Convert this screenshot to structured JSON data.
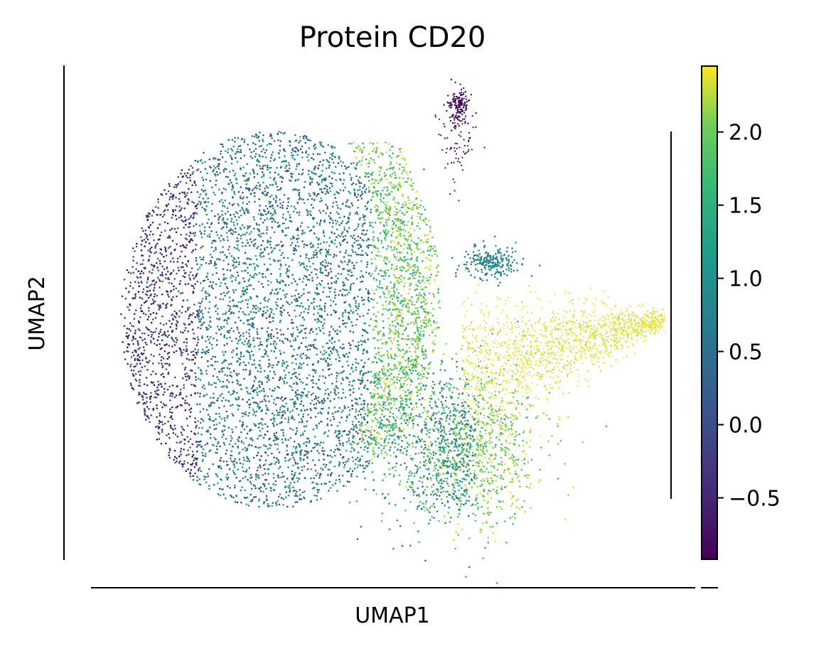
{
  "chart_data": {
    "type": "scatter",
    "title": "Protein CD20",
    "xlabel": "UMAP1",
    "ylabel": "UMAP2",
    "colorbar": {
      "colormap": "viridis",
      "vmin": -0.92,
      "vmax": 2.45,
      "ticks": [
        -0.5,
        0.0,
        0.5,
        1.0,
        1.5,
        2.0
      ],
      "tick_labels": [
        "−0.5",
        "0.0",
        "0.5",
        "1.0",
        "1.5",
        "2.0"
      ]
    },
    "grid": false,
    "regions": [
      {
        "name": "main cloud, left edge",
        "value_range": [
          -0.9,
          0.3
        ]
      },
      {
        "name": "main cloud, center",
        "value_range": [
          -0.2,
          1.4
        ]
      },
      {
        "name": "main cloud, right edge",
        "value_range": [
          1.2,
          2.4
        ]
      },
      {
        "name": "right projection",
        "value_range": [
          2.2,
          2.45
        ]
      },
      {
        "name": "lower-right lobe",
        "value_range": [
          0.2,
          2.4
        ]
      },
      {
        "name": "small cluster, right middle",
        "value_range": [
          0.4,
          1.2
        ]
      },
      {
        "name": "top isolated cluster",
        "value_range": [
          -0.92,
          -0.7
        ]
      }
    ]
  }
}
